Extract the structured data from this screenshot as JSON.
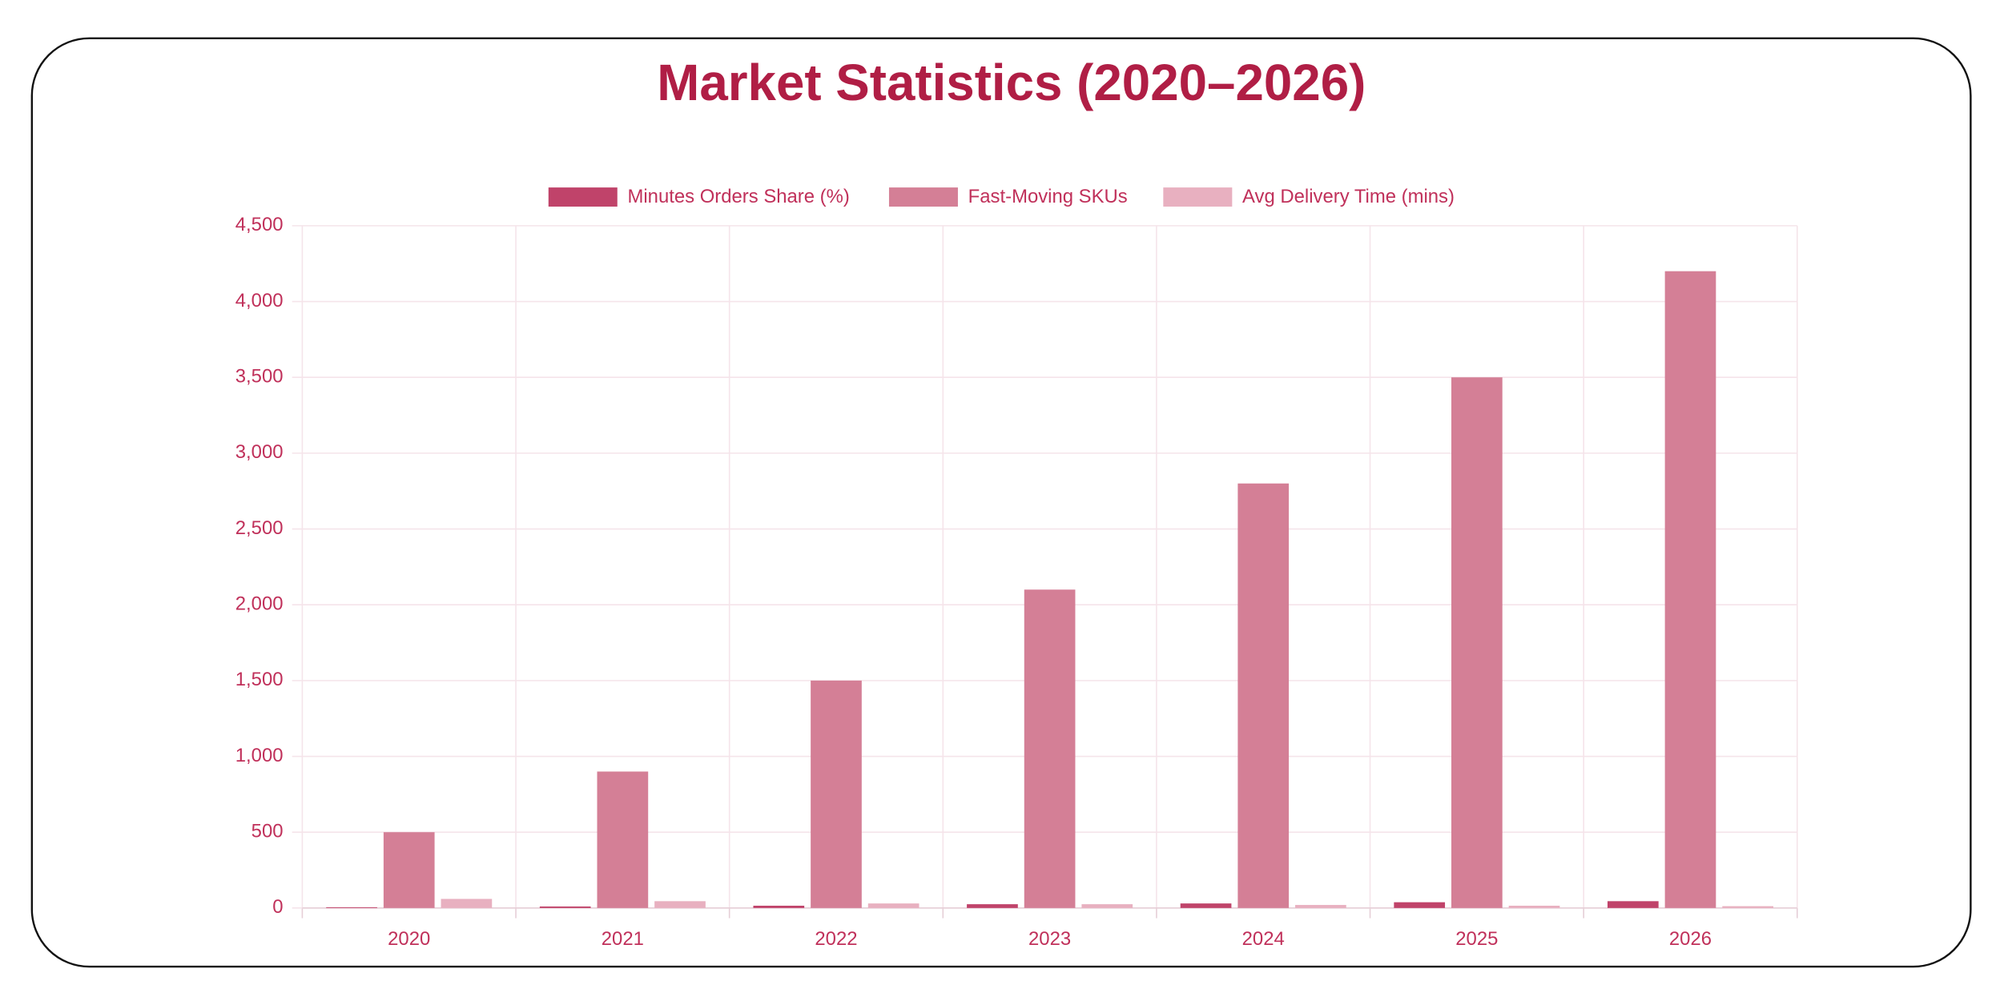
{
  "chart_data": {
    "type": "bar",
    "title": "Market Statistics (2020–2026)",
    "categories": [
      "2020",
      "2021",
      "2022",
      "2023",
      "2024",
      "2025",
      "2026"
    ],
    "series": [
      {
        "name": "Minutes Orders Share (%)",
        "color": "#c0436a",
        "values": [
          5,
          10,
          15,
          25,
          30,
          38,
          45
        ]
      },
      {
        "name": "Fast-Moving SKUs",
        "color": "#d47f96",
        "values": [
          500,
          900,
          1500,
          2100,
          2800,
          3500,
          4200
        ]
      },
      {
        "name": "Avg Delivery Time (mins)",
        "color": "#e8b0c0",
        "values": [
          60,
          45,
          30,
          25,
          20,
          15,
          12
        ]
      }
    ],
    "ylim": [
      0,
      4500
    ],
    "yticks": [
      0,
      500,
      {
        "value": 1000,
        "label": "1,000"
      },
      {
        "value": 1500,
        "label": "1,500"
      },
      {
        "value": 2000,
        "label": "2,000"
      },
      {
        "value": 2500,
        "label": "2,500"
      },
      {
        "value": 3000,
        "label": "3,000"
      },
      {
        "value": 3500,
        "label": "3,500"
      },
      {
        "value": 4000,
        "label": "4,000"
      },
      {
        "value": 4500,
        "label": "4,500"
      }
    ],
    "grid": true,
    "legend": "top"
  }
}
